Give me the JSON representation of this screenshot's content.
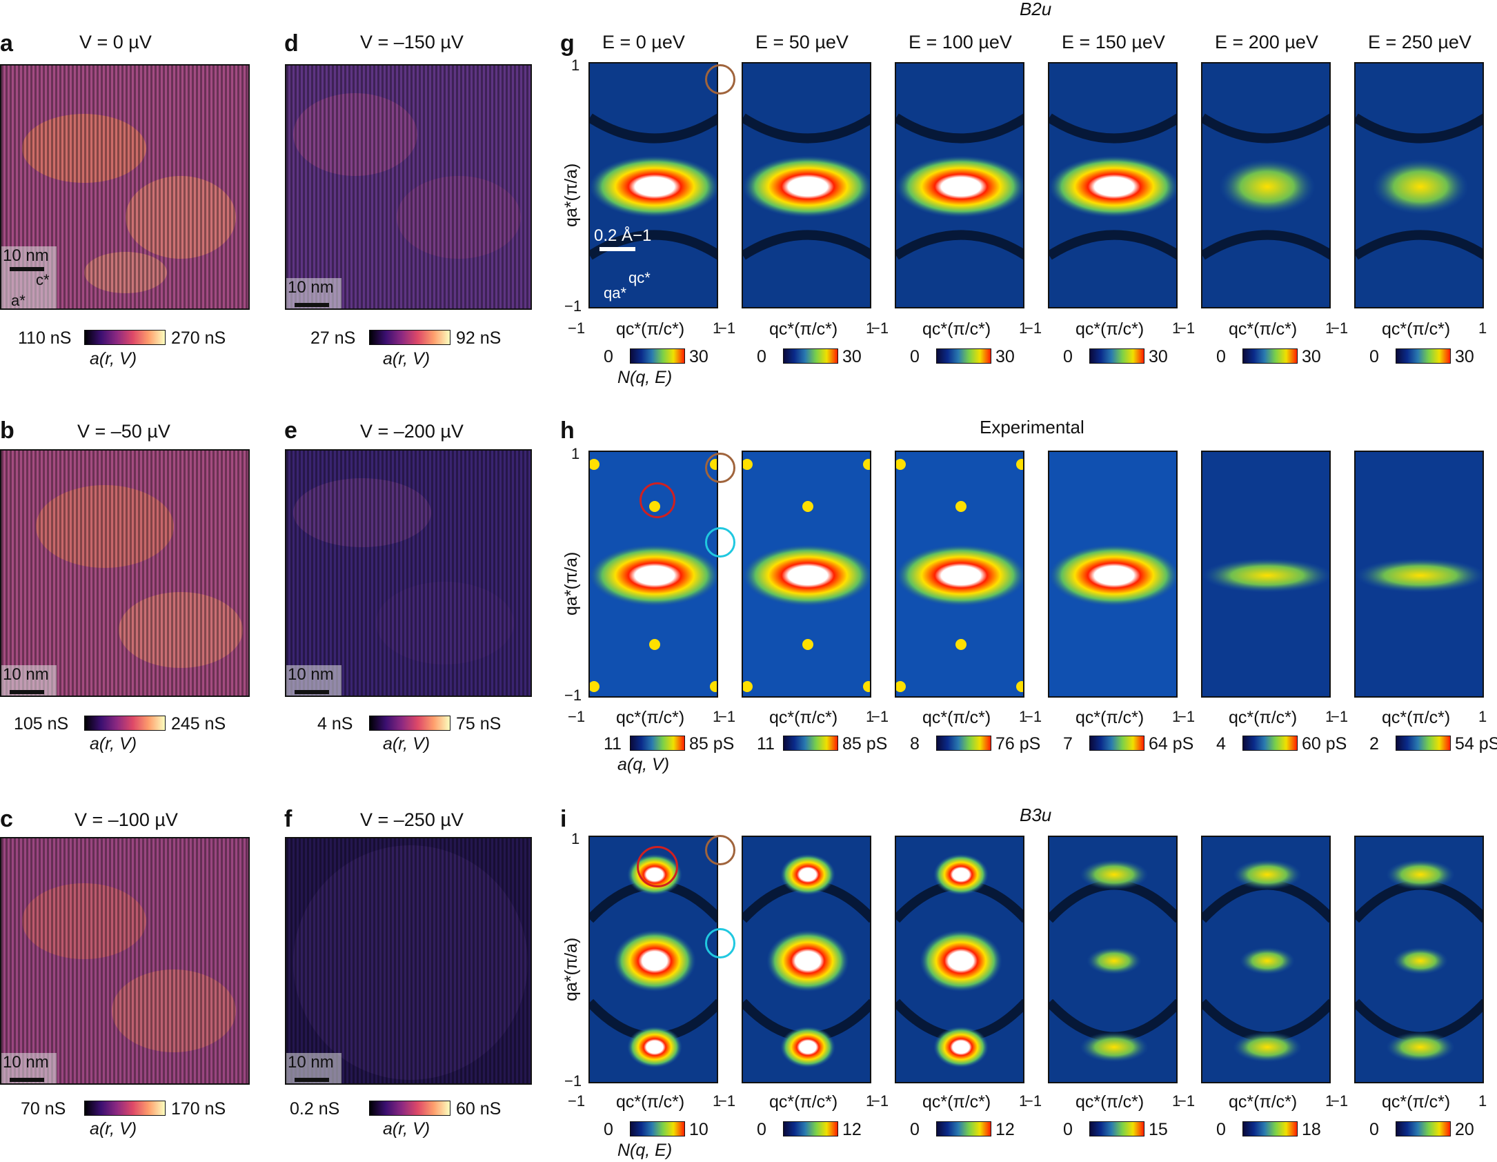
{
  "panels": {
    "a": {
      "label": "a",
      "title": "V = 0 µV",
      "cb_min": "110 nS",
      "cb_max": "270 nS",
      "cb_title": "a(r, V)",
      "scale": "10 nm",
      "axes": [
        "c*",
        "a*"
      ]
    },
    "b": {
      "label": "b",
      "title": "V = –50 µV",
      "cb_min": "105 nS",
      "cb_max": "245 nS",
      "cb_title": "a(r, V)",
      "scale": "10 nm"
    },
    "c": {
      "label": "c",
      "title": "V = –100 µV",
      "cb_min": "70 nS",
      "cb_max": "170 nS",
      "cb_title": "a(r, V)",
      "scale": "10 nm"
    },
    "d": {
      "label": "d",
      "title": "V = –150 µV",
      "cb_min": "27 nS",
      "cb_max": "92 nS",
      "cb_title": "a(r, V)",
      "scale": "10 nm"
    },
    "e": {
      "label": "e",
      "title": "V = –200 µV",
      "cb_min": "4 nS",
      "cb_max": "75 nS",
      "cb_title": "a(r, V)",
      "scale": "10 nm"
    },
    "f": {
      "label": "f",
      "title": "V = –250 µV",
      "cb_min": "0.2 nS",
      "cb_max": "60 nS",
      "cb_title": "a(r, V)",
      "scale": "10 nm"
    }
  },
  "row_g": {
    "label": "g",
    "header": "B2u",
    "energies": [
      "E = 0 µeV",
      "E = 50 µeV",
      "E = 100 µeV",
      "E = 150 µeV",
      "E = 200 µeV",
      "E = 250 µeV"
    ],
    "cb_min": [
      "0",
      "0",
      "0",
      "0",
      "0",
      "0"
    ],
    "cb_max": [
      "30",
      "30",
      "30",
      "30",
      "30",
      "30"
    ],
    "cb_title": "N(q, E)",
    "scale": "0.2 Å−1",
    "axis_c": "qc*",
    "axis_a": "qa*"
  },
  "row_h": {
    "label": "h",
    "header": "Experimental",
    "cb_min": [
      "11",
      "11",
      "8",
      "7",
      "4",
      "2"
    ],
    "cb_max": [
      "85 pS",
      "85 pS",
      "76 pS",
      "64 pS",
      "60 pS",
      "54 pS"
    ],
    "cb_title": "a(q, V)"
  },
  "row_i": {
    "label": "i",
    "header": "B3u",
    "cb_min": [
      "0",
      "0",
      "0",
      "0",
      "0",
      "0"
    ],
    "cb_max": [
      "10",
      "12",
      "12",
      "15",
      "18",
      "20"
    ],
    "cb_title": "N(q, E)"
  },
  "axes": {
    "xlabel": "qc*(π/c*)",
    "ylabel": "qa*(π/a)",
    "tick_neg": "−1",
    "tick_pos": "1"
  },
  "colors": {
    "magma_mid": "#7a3a7a",
    "jet_bg": "#0a2a7a",
    "brown_circle": "#a0643c",
    "red_circle": "#d02020",
    "cyan_circle": "#20c8e0"
  }
}
